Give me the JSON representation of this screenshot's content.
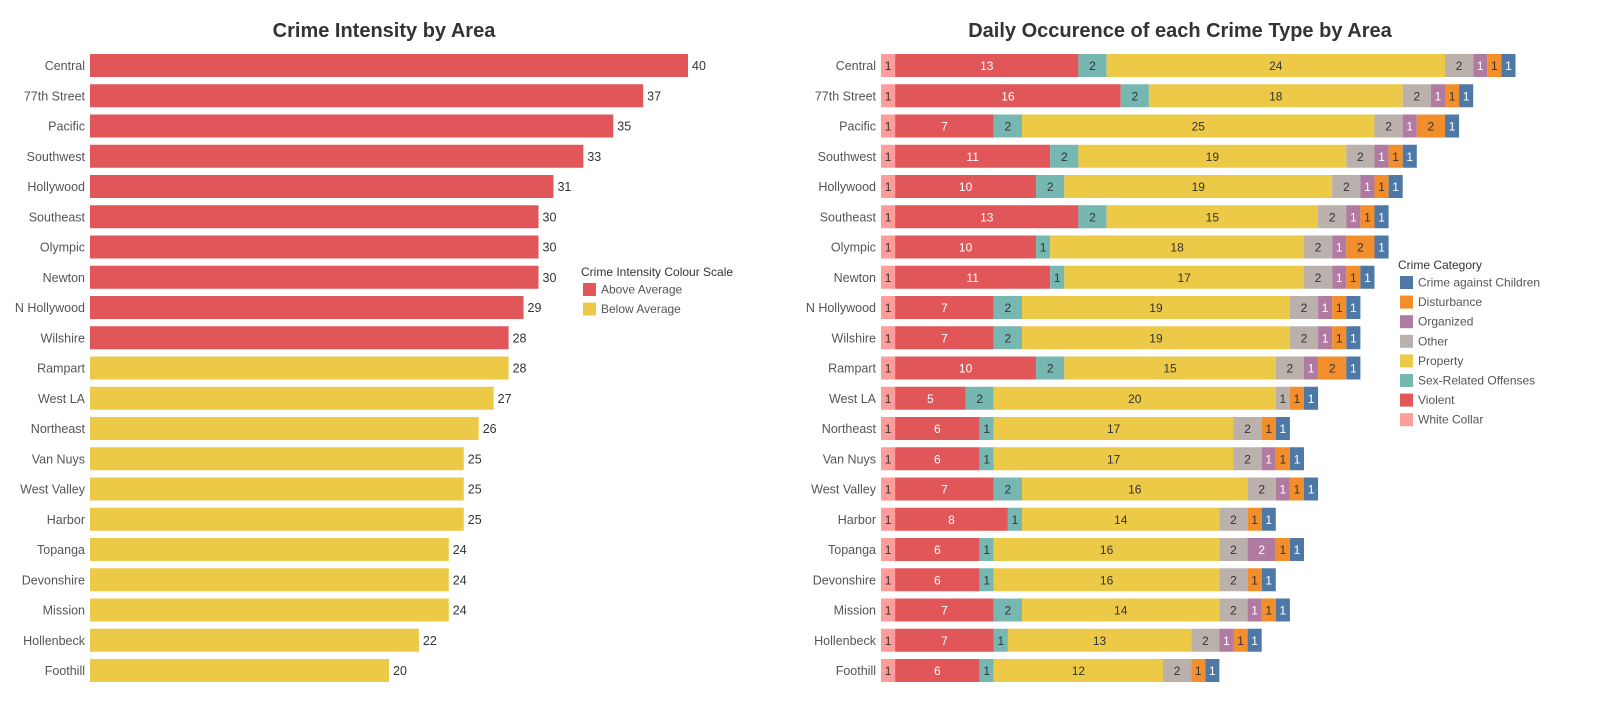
{
  "chart_data": [
    {
      "type": "bar",
      "orientation": "horizontal",
      "title": "Crime Intensity by Area",
      "categories": [
        "Central",
        "77th Street",
        "Pacific",
        "Southwest",
        "Hollywood",
        "Southeast",
        "Olympic",
        "Newton",
        "N Hollywood",
        "Wilshire",
        "Rampart",
        "West LA",
        "Northeast",
        "Van Nuys",
        "West Valley",
        "Harbor",
        "Topanga",
        "Devonshire",
        "Mission",
        "Hollenbeck",
        "Foothill"
      ],
      "values": [
        40,
        37,
        35,
        33,
        31,
        30,
        30,
        30,
        29,
        28,
        28,
        27,
        26,
        25,
        25,
        25,
        24,
        24,
        24,
        22,
        20
      ],
      "groups": [
        "Above Average",
        "Above Average",
        "Above Average",
        "Above Average",
        "Above Average",
        "Above Average",
        "Above Average",
        "Above Average",
        "Above Average",
        "Above Average",
        "Below Average",
        "Below Average",
        "Below Average",
        "Below Average",
        "Below Average",
        "Below Average",
        "Below Average",
        "Below Average",
        "Below Average",
        "Below Average",
        "Below Average"
      ],
      "legend": {
        "title": "Crime Intensity Colour Scale",
        "position": "right",
        "items": [
          {
            "name": "Above Average",
            "color": "#e15759"
          },
          {
            "name": "Below Average",
            "color": "#edc948"
          }
        ]
      },
      "grid": false
    },
    {
      "type": "bar",
      "orientation": "horizontal",
      "stacked": true,
      "title": "Daily Occurence of each Crime Type by Area",
      "categories": [
        "Central",
        "77th Street",
        "Pacific",
        "Southwest",
        "Hollywood",
        "Southeast",
        "Olympic",
        "Newton",
        "N Hollywood",
        "Wilshire",
        "Rampart",
        "West LA",
        "Northeast",
        "Van Nuys",
        "West Valley",
        "Harbor",
        "Topanga",
        "Devonshire",
        "Mission",
        "Hollenbeck",
        "Foothill"
      ],
      "series": [
        {
          "name": "White Collar",
          "color": "#ff9d9a",
          "label_color": "#333333",
          "values": [
            1,
            1,
            1,
            1,
            1,
            1,
            1,
            1,
            1,
            1,
            1,
            1,
            1,
            1,
            1,
            1,
            1,
            1,
            1,
            1,
            1
          ]
        },
        {
          "name": "Violent",
          "color": "#e15759",
          "label_color": "#ffffff",
          "values": [
            13,
            16,
            7,
            11,
            10,
            13,
            10,
            11,
            7,
            7,
            10,
            5,
            6,
            6,
            7,
            8,
            6,
            6,
            7,
            7,
            6
          ]
        },
        {
          "name": "Sex-Related Offenses",
          "color": "#76b7b2",
          "label_color": "#333333",
          "values": [
            2,
            2,
            2,
            2,
            2,
            2,
            1,
            1,
            2,
            2,
            2,
            2,
            1,
            1,
            2,
            1,
            1,
            1,
            2,
            1,
            1
          ]
        },
        {
          "name": "Property",
          "color": "#edc948",
          "label_color": "#333333",
          "values": [
            24,
            18,
            25,
            19,
            19,
            15,
            18,
            17,
            19,
            19,
            15,
            20,
            17,
            17,
            16,
            14,
            16,
            16,
            14,
            13,
            12
          ]
        },
        {
          "name": "Other",
          "color": "#bab0ac",
          "label_color": "#333333",
          "values": [
            2,
            2,
            2,
            2,
            2,
            2,
            2,
            2,
            2,
            2,
            2,
            1,
            2,
            2,
            2,
            2,
            2,
            2,
            2,
            2,
            2
          ]
        },
        {
          "name": "Organized",
          "color": "#b07aa1",
          "label_color": "#ffffff",
          "values": [
            1,
            1,
            1,
            1,
            1,
            1,
            1,
            1,
            1,
            1,
            1,
            0,
            0,
            1,
            1,
            0,
            2,
            0,
            1,
            1,
            0
          ]
        },
        {
          "name": "Disturbance",
          "color": "#f28e2b",
          "label_color": "#333333",
          "values": [
            1,
            1,
            2,
            1,
            1,
            1,
            2,
            1,
            1,
            1,
            2,
            1,
            1,
            1,
            1,
            1,
            1,
            1,
            1,
            1,
            1
          ]
        },
        {
          "name": "Crime against Children",
          "color": "#4e79a7",
          "label_color": "#ffffff",
          "values": [
            1,
            1,
            1,
            1,
            1,
            1,
            1,
            1,
            1,
            1,
            1,
            1,
            1,
            1,
            1,
            1,
            1,
            1,
            1,
            1,
            1
          ]
        }
      ],
      "legend": {
        "title": "Crime Category",
        "position": "right",
        "items": [
          {
            "name": "Crime against Children",
            "color": "#4e79a7"
          },
          {
            "name": "Disturbance",
            "color": "#f28e2b"
          },
          {
            "name": "Organized",
            "color": "#b07aa1"
          },
          {
            "name": "Other",
            "color": "#bab0ac"
          },
          {
            "name": "Property",
            "color": "#edc948"
          },
          {
            "name": "Sex-Related Offenses",
            "color": "#76b7b2"
          },
          {
            "name": "Violent",
            "color": "#e15759"
          },
          {
            "name": "White Collar",
            "color": "#ff9d9a"
          }
        ]
      },
      "grid": false
    }
  ]
}
